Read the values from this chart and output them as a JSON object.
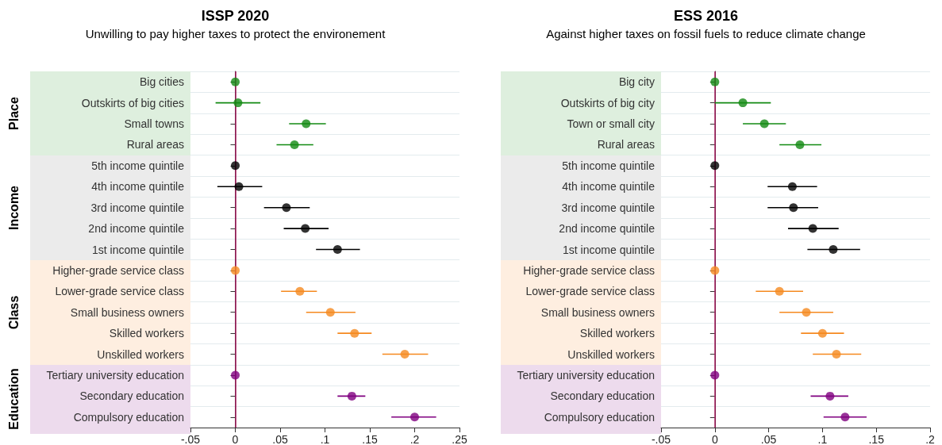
{
  "chart_data": [
    {
      "type": "scatter",
      "orientation": "horizontal",
      "title": "ISSP 2020",
      "subtitle": "Unwilling to pay higher taxes to protect the environement",
      "categories": [
        "Big cities",
        "Outskirts of big cities",
        "Small towns",
        "Rural areas",
        "5th income quintile",
        "4th income quintile",
        "3rd income quintile",
        "2nd income quintile",
        "1st income quintile",
        "Higher-grade service class",
        "Lower-grade service class",
        "Small business owners",
        "Skilled workers",
        "Unskilled workers",
        "Tertiary university education",
        "Secondary education",
        "Compulsory education"
      ],
      "values": [
        0,
        0.003,
        0.079,
        0.066,
        0,
        0.004,
        0.057,
        0.078,
        0.114,
        0,
        0.072,
        0.106,
        0.133,
        0.189,
        0,
        0.13,
        0.2
      ],
      "errors": [
        null,
        [
          -0.022,
          0.028
        ],
        [
          0.06,
          0.101
        ],
        [
          0.046,
          0.087
        ],
        null,
        [
          -0.02,
          0.03
        ],
        [
          0.032,
          0.083
        ],
        [
          0.054,
          0.104
        ],
        [
          0.09,
          0.139
        ],
        null,
        [
          0.051,
          0.091
        ],
        [
          0.079,
          0.134
        ],
        [
          0.114,
          0.152
        ],
        [
          0.164,
          0.215
        ],
        null,
        [
          0.114,
          0.145
        ],
        [
          0.174,
          0.224
        ]
      ],
      "colors": [
        "#138a13",
        "#138a13",
        "#138a13",
        "#138a13",
        "#000000",
        "#000000",
        "#000000",
        "#000000",
        "#000000",
        "#f5891f",
        "#f5891f",
        "#f5891f",
        "#f5891f",
        "#f5891f",
        "#800080",
        "#800080",
        "#800080"
      ],
      "xlim": [
        -0.05,
        0.25
      ],
      "xticks": [
        {
          "value": -0.05,
          "label": "-.05"
        },
        0,
        {
          "value": 0.05,
          "label": ".05"
        },
        {
          "value": 0.1,
          "label": ".1"
        },
        {
          "value": 0.15,
          "label": ".15"
        },
        {
          "value": 0.2,
          "label": ".2"
        },
        {
          "value": 0.25,
          "label": ".25"
        }
      ],
      "ref_lines": [
        {
          "axis": "x",
          "value": 0,
          "color": "#a3195b"
        }
      ],
      "annotations": [
        "Place",
        "Income",
        "Class",
        "Education"
      ],
      "marker": "circle",
      "grid": "y"
    },
    {
      "type": "scatter",
      "orientation": "horizontal",
      "title": "ESS 2016",
      "subtitle": "Against higher taxes on fossil fuels to reduce climate change",
      "categories": [
        "Big city",
        "Outskirts of big city",
        "Town or small city",
        "Rural areas",
        "5th income quintile",
        "4th income quintile",
        "3rd income quintile",
        "2nd income quintile",
        "1st income quintile",
        "Higher-grade service class",
        "Lower-grade service class",
        "Small business owners",
        "Skilled workers",
        "Unskilled workers",
        "Tertiary university education",
        "Secondary education",
        "Compulsory education"
      ],
      "values": [
        0,
        0.026,
        0.046,
        0.079,
        0,
        0.072,
        0.073,
        0.091,
        0.11,
        0,
        0.06,
        0.085,
        0.1,
        0.113,
        0,
        0.107,
        0.121
      ],
      "errors": [
        null,
        [
          0,
          0.052
        ],
        [
          0.026,
          0.066
        ],
        [
          0.06,
          0.099
        ],
        null,
        [
          0.049,
          0.095
        ],
        [
          0.049,
          0.096
        ],
        [
          0.068,
          0.115
        ],
        [
          0.086,
          0.135
        ],
        null,
        [
          0.038,
          0.082
        ],
        [
          0.06,
          0.11
        ],
        [
          0.08,
          0.12
        ],
        [
          0.091,
          0.136
        ],
        null,
        [
          0.089,
          0.124
        ],
        [
          0.101,
          0.141
        ]
      ],
      "colors": [
        "#138a13",
        "#138a13",
        "#138a13",
        "#138a13",
        "#000000",
        "#000000",
        "#000000",
        "#000000",
        "#000000",
        "#f5891f",
        "#f5891f",
        "#f5891f",
        "#f5891f",
        "#f5891f",
        "#800080",
        "#800080",
        "#800080"
      ],
      "xlim": [
        -0.05,
        0.2
      ],
      "xticks": [
        {
          "value": -0.05,
          "label": "-.05"
        },
        0,
        {
          "value": 0.05,
          "label": ".05"
        },
        {
          "value": 0.1,
          "label": ".1"
        },
        {
          "value": 0.15,
          "label": ".15"
        },
        {
          "value": 0.2,
          "label": ".2"
        }
      ],
      "ref_lines": [
        {
          "axis": "x",
          "value": 0,
          "color": "#a3195b"
        }
      ],
      "marker": "circle",
      "grid": "y"
    }
  ]
}
